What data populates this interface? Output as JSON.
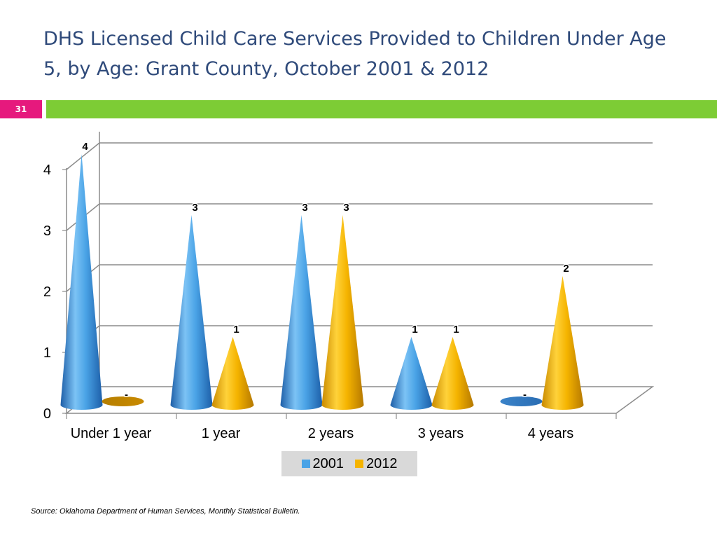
{
  "slide": {
    "title": "DHS Licensed Child Care Services Provided to Children Under Age 5, by Age: Grant County, October 2001 & 2012",
    "number": "31",
    "source": "Source:  Oklahoma Department of Human Services, Monthly Statistical Bulletin."
  },
  "chart_data": {
    "type": "bar",
    "style": "3d-cone",
    "categories": [
      "Under 1 year",
      "1 year",
      "2 years",
      "3 years",
      "4 years"
    ],
    "series": [
      {
        "name": "2001",
        "values": [
          4,
          3,
          3,
          1,
          0
        ],
        "labels": [
          "4",
          "3",
          "3",
          "1",
          "-"
        ],
        "color": "#4aa3e6"
      },
      {
        "name": "2012",
        "values": [
          0,
          1,
          3,
          1,
          2
        ],
        "labels": [
          "-",
          "1",
          "3",
          "1",
          "2"
        ],
        "color": "#f5b400"
      }
    ],
    "ylim": [
      0,
      4
    ],
    "yticks": [
      "0",
      "1",
      "2",
      "3",
      "4"
    ],
    "grid": true,
    "legend": "bottom",
    "title": "",
    "xlabel": "",
    "ylabel": ""
  }
}
